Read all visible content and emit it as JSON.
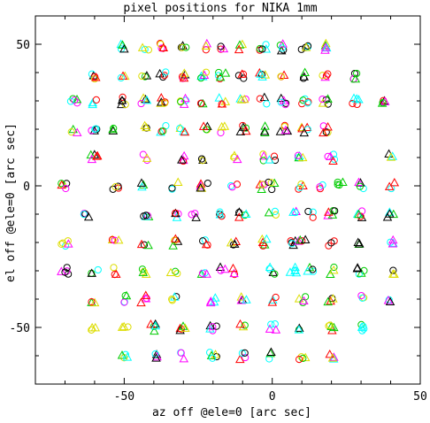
{
  "chart_data": {
    "type": "scatter",
    "title": "pixel positions for NIKA 1mm",
    "xlabel": "az off @ele=0 [arc sec]",
    "ylabel": "el off @ele=0 [arc sec]",
    "xlim": [
      -80,
      50
    ],
    "ylim": [
      -70,
      60
    ],
    "x_ticks": [
      -50,
      0,
      50
    ],
    "y_ticks": [
      -50,
      0,
      50
    ],
    "x_tick_labels": [
      "-50",
      "0",
      "50"
    ],
    "y_tick_labels": [
      "-50",
      "0",
      "50"
    ],
    "grid": false,
    "legend": "none",
    "colors": {
      "black": "#000000",
      "red": "#ff0000",
      "green": "#00cc00",
      "cyan": "#00ffff",
      "magenta": "#ff00ff",
      "blue": "#0000ff",
      "yellow": "#dddd00"
    },
    "markers": [
      "circle",
      "triangle"
    ],
    "pixel_grid": {
      "rows": [
        {
          "y": 49,
          "x": [
            -50,
            -43,
            -37,
            -30,
            -23,
            -17,
            -10,
            -3,
            4,
            11,
            18
          ]
        },
        {
          "y": 39,
          "x": [
            -60,
            -50,
            -43,
            -37,
            -30,
            -23,
            -17,
            -10,
            -3,
            4,
            11,
            18,
            28
          ]
        },
        {
          "y": 30,
          "x": [
            -67,
            -60,
            -50,
            -43,
            -37,
            -30,
            -23,
            -17,
            -10,
            -3,
            4,
            11,
            18,
            28,
            37
          ]
        },
        {
          "y": 20,
          "x": [
            -67,
            -60,
            -53,
            -43,
            -37,
            -30,
            -23,
            -17,
            -10,
            -3,
            4,
            11,
            18
          ]
        },
        {
          "y": 10,
          "x": [
            -60,
            -43,
            -30,
            -23,
            -13,
            -3,
            0,
            10,
            20,
            40
          ]
        },
        {
          "y": 0,
          "x": [
            -70,
            -53,
            -43,
            -33,
            -23,
            -13,
            -3,
            0,
            10,
            17,
            23,
            30,
            40
          ]
        },
        {
          "y": -10,
          "x": [
            -63,
            -43,
            -33,
            -27,
            -17,
            -10,
            0,
            7,
            13,
            20,
            30,
            40
          ]
        },
        {
          "y": -20,
          "x": [
            -70,
            -53,
            -43,
            -33,
            -23,
            -13,
            -3,
            7,
            10,
            20,
            30,
            40
          ]
        },
        {
          "y": -30,
          "x": [
            -70,
            -60,
            -53,
            -43,
            -33,
            -23,
            -17,
            -13,
            0,
            7,
            13,
            20,
            30,
            40
          ]
        },
        {
          "y": -40,
          "x": [
            -60,
            -50,
            -43,
            -33,
            -20,
            -10,
            0,
            10,
            20,
            30,
            40
          ]
        },
        {
          "y": -50,
          "x": [
            -60,
            -50,
            -40,
            -30,
            -20,
            -10,
            0,
            10,
            20,
            30
          ]
        },
        {
          "y": -60,
          "x": [
            -50,
            -40,
            -30,
            -20,
            -10,
            0,
            10,
            20
          ]
        }
      ]
    }
  }
}
